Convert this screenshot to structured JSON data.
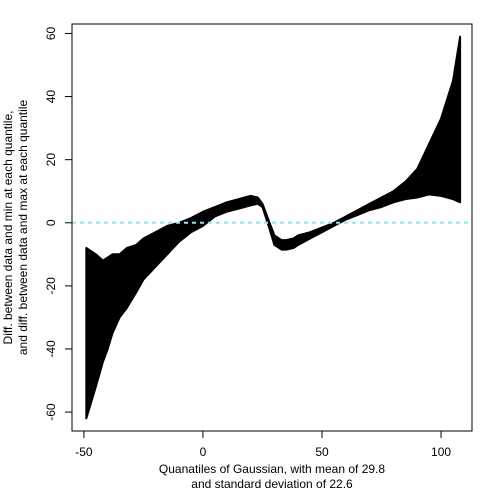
{
  "chart_data": {
    "type": "area",
    "title": "",
    "xlabel_lines": [
      "Quanatiles of Gaussian, with mean of 29.8",
      "and standard deviation of 22.6"
    ],
    "ylabel_lines": [
      "Diff. between data and min at each quantile,",
      "and diff. between data and max at each quantile"
    ],
    "xlim": [
      -55,
      113
    ],
    "ylim": [
      -66,
      63
    ],
    "x_ticks": [
      -50,
      0,
      50,
      100
    ],
    "y_ticks": [
      -60,
      -40,
      -20,
      0,
      20,
      40,
      60
    ],
    "x_tick_labels": [
      "-50",
      "0",
      "50",
      "100"
    ],
    "y_tick_labels": [
      "-60",
      "-40",
      "-20",
      "0",
      "20",
      "40",
      "60"
    ],
    "reference_line": {
      "y": 0,
      "style": "dashed",
      "color": "#8ee6ee"
    },
    "band_color": "#000000",
    "grid": false,
    "upper": {
      "x": [
        -49,
        -45,
        -42,
        -38,
        -35,
        -32,
        -28,
        -25,
        -20,
        -15,
        -10,
        -5,
        0,
        5,
        10,
        15,
        20,
        23,
        25,
        28,
        30,
        33,
        35,
        38,
        40,
        45,
        50,
        55,
        60,
        65,
        70,
        75,
        80,
        85,
        90,
        95,
        100,
        105,
        108
      ],
      "y": [
        -8,
        -10,
        -12,
        -10,
        -10,
        -8,
        -7,
        -5,
        -3,
        -1,
        0,
        1.5,
        3.5,
        5,
        6.5,
        7.5,
        8.5,
        8,
        6,
        0,
        -4,
        -5.5,
        -5.5,
        -5,
        -4,
        -3,
        -1.5,
        0,
        2,
        4,
        6,
        8,
        10,
        13,
        17,
        25,
        33,
        45,
        59
      ]
    },
    "lower": {
      "x": [
        -49,
        -45,
        -42,
        -40,
        -38,
        -35,
        -32,
        -28,
        -25,
        -20,
        -15,
        -10,
        -5,
        0,
        5,
        10,
        15,
        20,
        23,
        25,
        28,
        30,
        33,
        35,
        38,
        40,
        45,
        50,
        55,
        60,
        65,
        70,
        75,
        80,
        85,
        90,
        95,
        100,
        105,
        108
      ],
      "y": [
        -62,
        -52,
        -44,
        -40,
        -35,
        -30,
        -27,
        -22,
        -18,
        -14,
        -10,
        -6,
        -3,
        -1,
        2,
        3.5,
        4.5,
        5.5,
        6,
        5,
        -2,
        -7,
        -8.5,
        -8.5,
        -8,
        -7,
        -5,
        -3,
        -1,
        1,
        2.5,
        4,
        5,
        6.5,
        7.5,
        8,
        9,
        8.5,
        7.5,
        6.5
      ]
    }
  }
}
